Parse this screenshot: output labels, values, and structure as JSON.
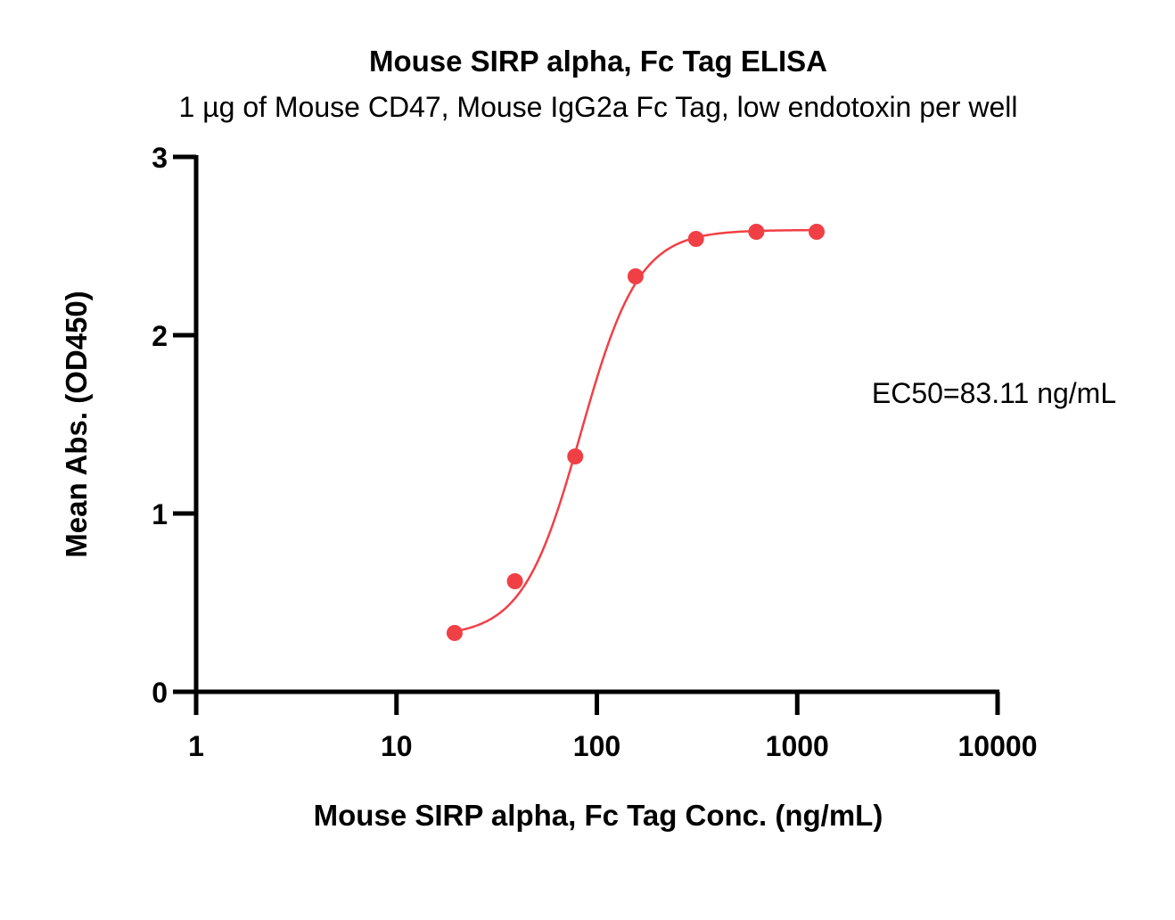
{
  "chart_data": {
    "type": "scatter",
    "title": "Mouse SIRP alpha, Fc Tag ELISA",
    "subtitle": "1 µg of Mouse CD47, Mouse IgG2a Fc Tag, low endotoxin per well",
    "xlabel": "Mouse SIRP alpha, Fc Tag Conc. (ng/mL)",
    "ylabel": "Mean Abs. (OD450)",
    "x_scale": "log",
    "xlim": [
      1,
      10000
    ],
    "ylim": [
      0,
      3
    ],
    "x_ticks": [
      1,
      10,
      100,
      1000,
      10000
    ],
    "x_tick_labels": [
      "1",
      "10",
      "100",
      "1000",
      "10000"
    ],
    "y_ticks": [
      0,
      1,
      2,
      3
    ],
    "y_tick_labels": [
      "0",
      "1",
      "2",
      "3"
    ],
    "grid": false,
    "series": [
      {
        "color": "#f04046",
        "x": [
          19.5,
          39,
          78,
          156,
          312.5,
          625,
          1250
        ],
        "y": [
          0.33,
          0.62,
          1.32,
          2.33,
          2.54,
          2.58,
          2.58
        ]
      }
    ],
    "fit_curve": {
      "model": "4PL",
      "bottom": 0.31,
      "top": 2.59,
      "ec50": 83.11,
      "hill": 3.0,
      "x_range": [
        19.5,
        1250
      ],
      "color": "#f04046"
    },
    "annotation": "EC50=83.11 ng/mL"
  }
}
